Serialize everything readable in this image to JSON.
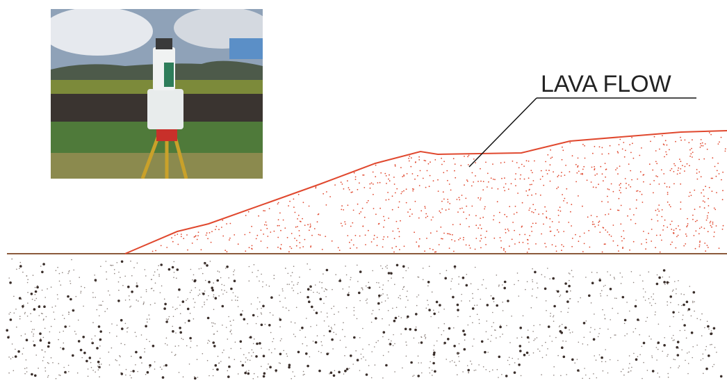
{
  "label": "LAVA FLOW"
}
